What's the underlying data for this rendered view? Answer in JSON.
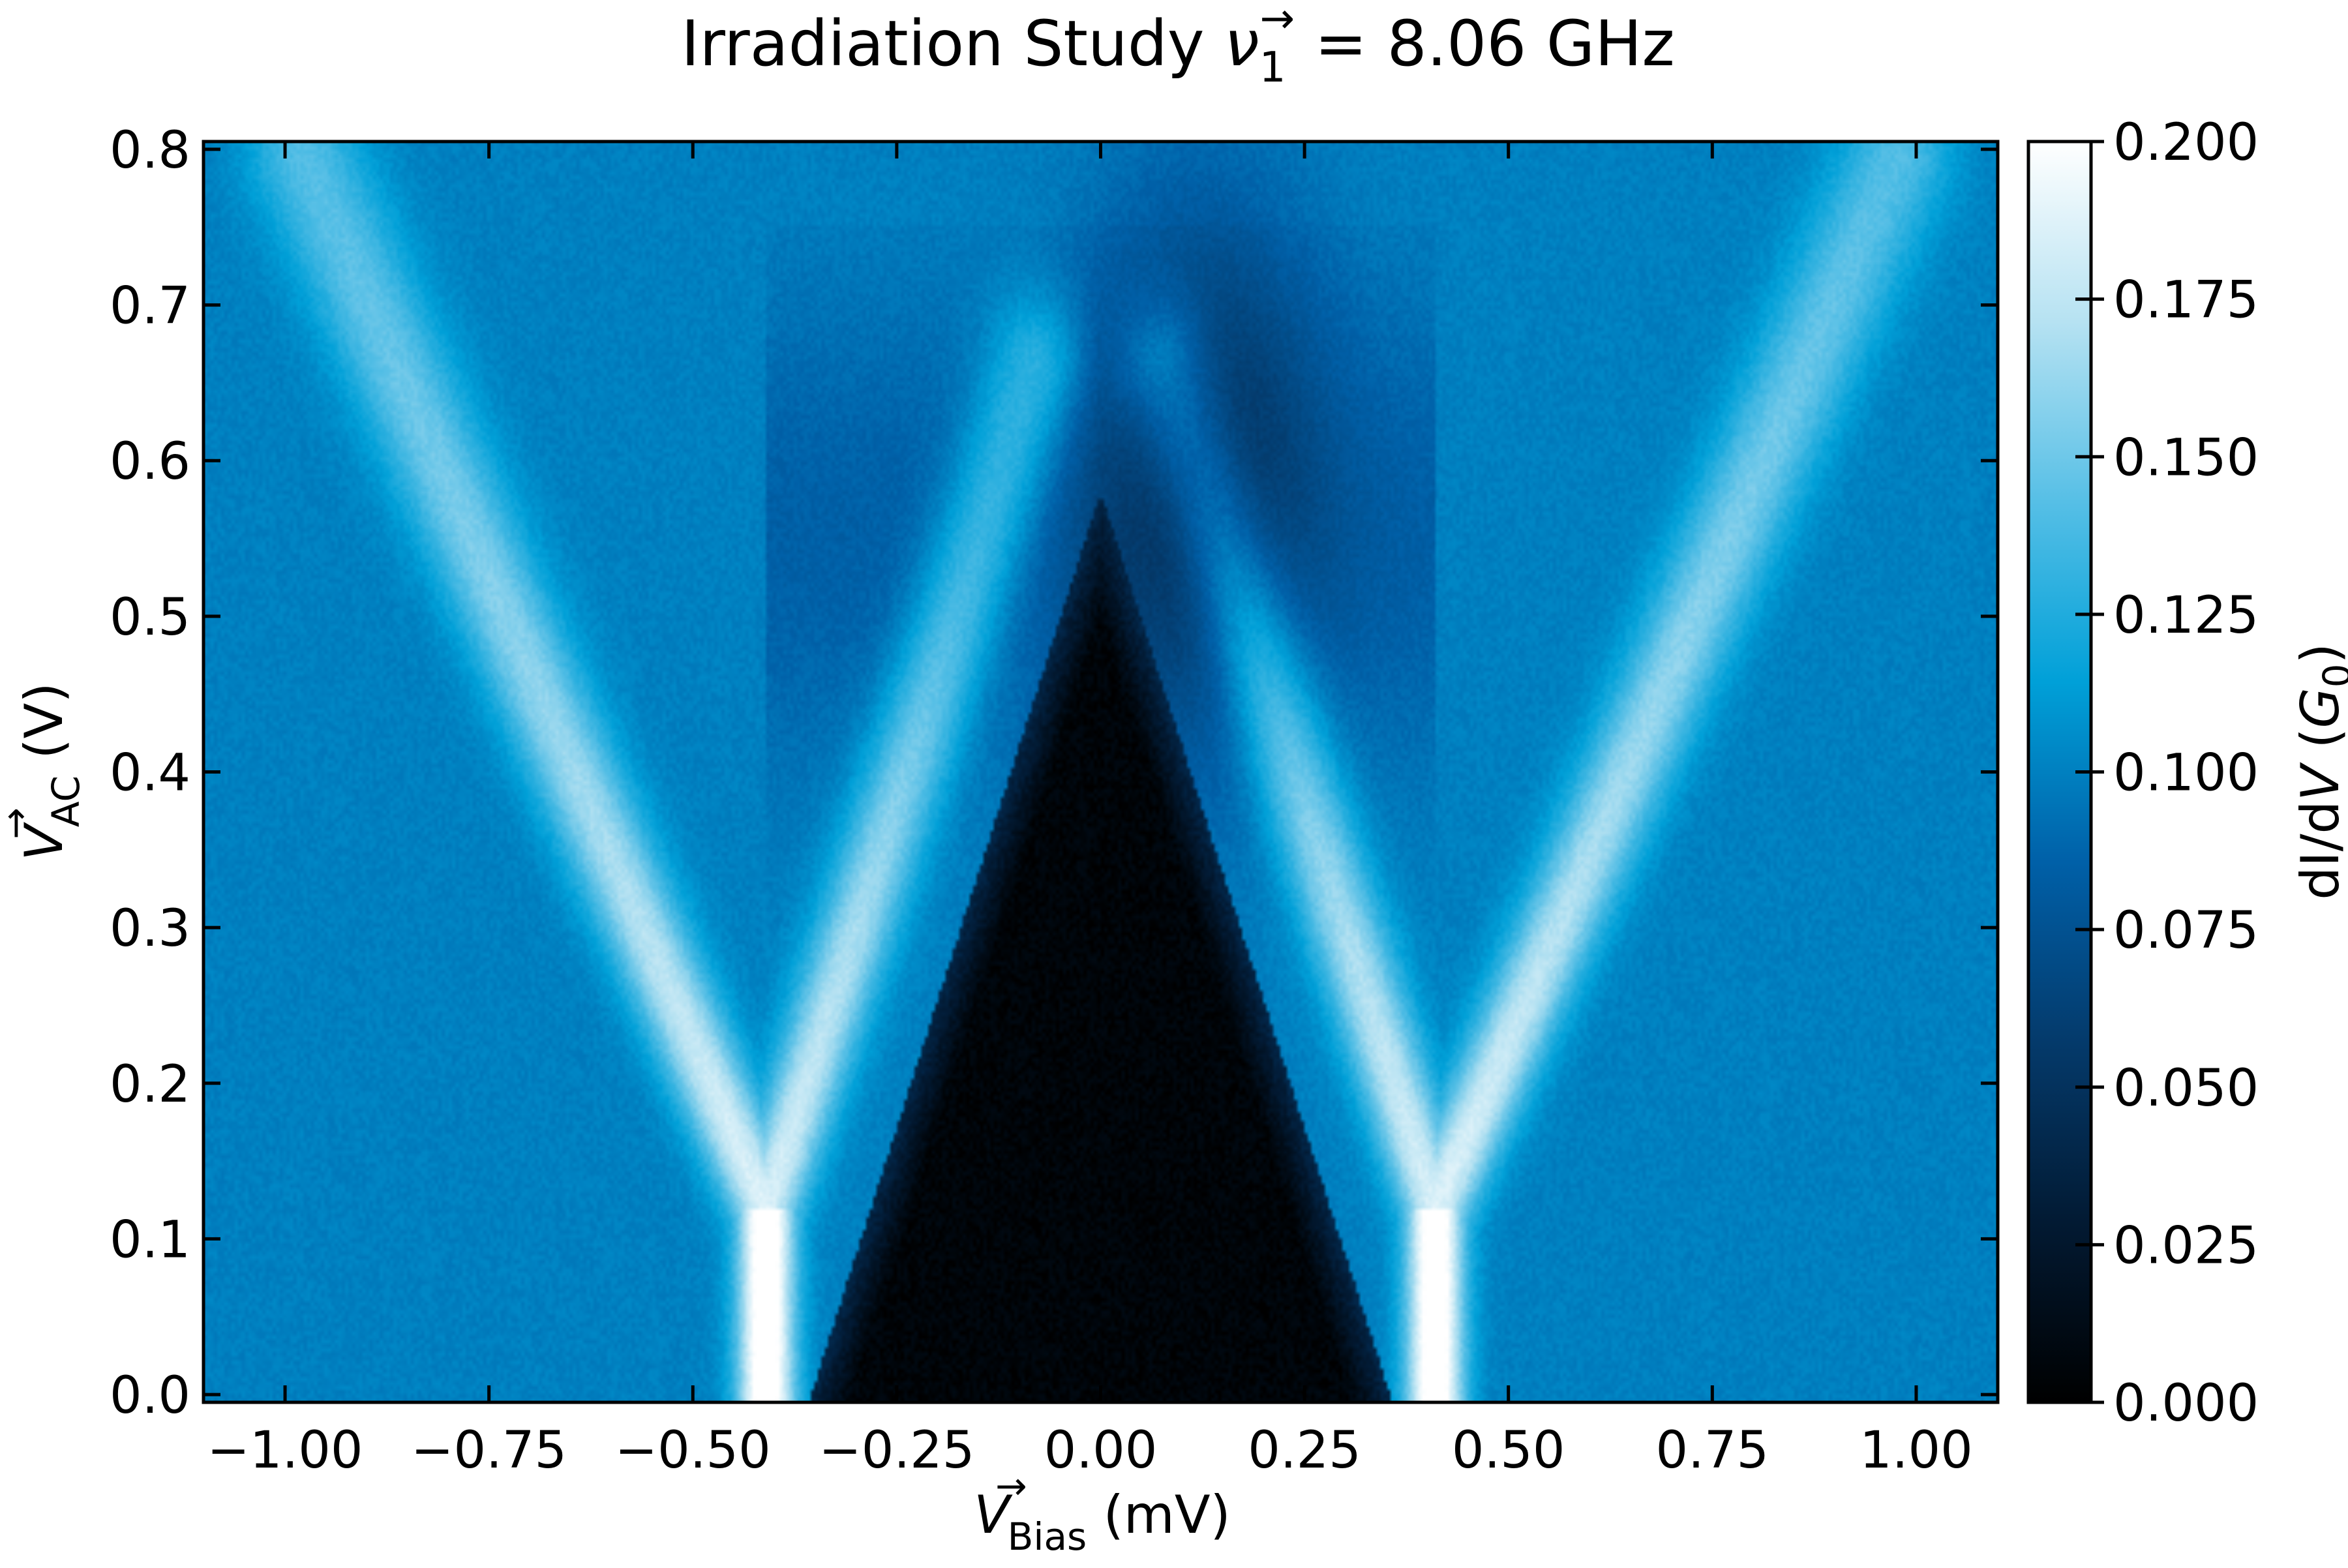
{
  "chart_data": {
    "type": "heatmap",
    "title": {
      "prefix": "Irradiation Study ",
      "symbol": "ν",
      "subscript": "1",
      "superscript": "→",
      "suffix": " = 8.06 GHz"
    },
    "xlabel": {
      "symbol": "V",
      "superscript": "→",
      "subscript": "Bias",
      "unit": " (mV)"
    },
    "ylabel": {
      "symbol": "V",
      "superscript": "→",
      "subscript": "AC",
      "unit": " (V)"
    },
    "colorbar_label": {
      "prefix": "dI/d",
      "symbol": "V",
      "open": " (",
      "unit_symbol": "G",
      "unit_subscript": "0",
      "close": ")"
    },
    "xlim": [
      -1.1,
      1.1
    ],
    "ylim": [
      -0.005,
      0.805
    ],
    "clim": [
      0.0,
      0.2
    ],
    "x_ticks": [
      -1.0,
      -0.75,
      -0.5,
      -0.25,
      0.0,
      0.25,
      0.5,
      0.75,
      1.0
    ],
    "x_tick_labels": [
      "−1.00",
      "−0.75",
      "−0.50",
      "−0.25",
      "0.00",
      "0.25",
      "0.50",
      "0.75",
      "1.00"
    ],
    "y_ticks": [
      0.0,
      0.1,
      0.2,
      0.3,
      0.4,
      0.5,
      0.6,
      0.7,
      0.8
    ],
    "y_tick_labels": [
      "0.0",
      "0.1",
      "0.2",
      "0.3",
      "0.4",
      "0.5",
      "0.6",
      "0.7",
      "0.8"
    ],
    "colorbar_ticks": [
      0.0,
      0.025,
      0.05,
      0.075,
      0.1,
      0.125,
      0.15,
      0.175,
      0.2
    ],
    "colorbar_tick_labels": [
      "0.000",
      "0.025",
      "0.050",
      "0.075",
      "0.100",
      "0.125",
      "0.150",
      "0.175",
      "0.200"
    ],
    "colormap": [
      "#000000",
      "#021a33",
      "#043a6b",
      "#0060a8",
      "#00a0d8",
      "#56bfe6",
      "#b6e2f2",
      "#ffffff"
    ],
    "features": {
      "background_value": 0.1,
      "gap_value": 0.005,
      "gap_half_width_at_zero": 0.355,
      "gap_closes_at_vac": 0.58,
      "main_peak_position_at_zero": 0.41,
      "main_peak_value": 0.2,
      "main_peak_apex_vac": 0.12,
      "inner_branch_end": [
        0.08,
        0.66
      ],
      "outer_branch_end": [
        0.98,
        0.8
      ],
      "high_vac_dark_center": [
        0.12,
        0.6
      ],
      "high_vac_dark_value": 0.05
    },
    "grid": false
  }
}
